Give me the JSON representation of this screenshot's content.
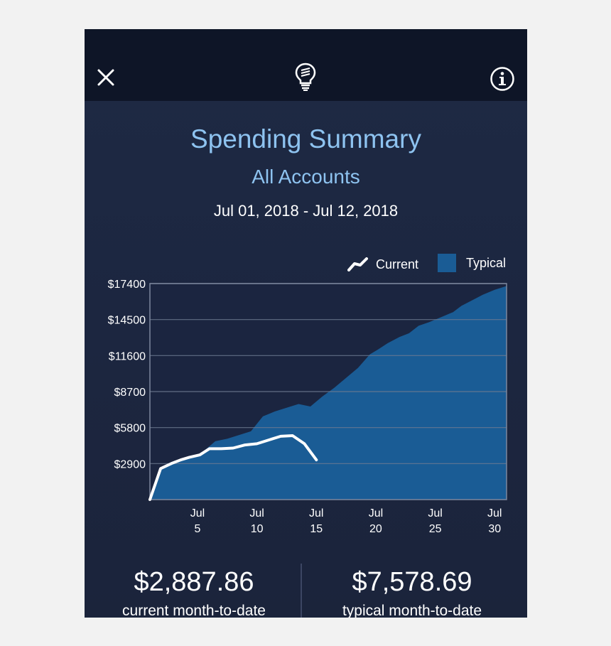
{
  "header": {
    "close_icon": "close-icon",
    "logo_icon": "lightbulb-icon",
    "info_icon": "info-icon"
  },
  "summary": {
    "title": "Spending Summary",
    "subtitle": "All Accounts",
    "date_range": "Jul 01, 2018 - Jul 12, 2018"
  },
  "legend": {
    "current": "Current",
    "typical": "Typical"
  },
  "chart_data": {
    "type": "area",
    "ylim": [
      0,
      17400
    ],
    "y_ticks": [
      {
        "value": 17400,
        "label": "$17400"
      },
      {
        "value": 14500,
        "label": "$14500"
      },
      {
        "value": 11600,
        "label": "$11600"
      },
      {
        "value": 8700,
        "label": "$8700"
      },
      {
        "value": 5800,
        "label": "$5800"
      },
      {
        "value": 2900,
        "label": "$2900"
      }
    ],
    "xlim": [
      1,
      31
    ],
    "x_ticks": [
      {
        "value": 5,
        "line1": "Jul",
        "line2": "5"
      },
      {
        "value": 10,
        "line1": "Jul",
        "line2": "10"
      },
      {
        "value": 15,
        "line1": "Jul",
        "line2": "15"
      },
      {
        "value": 20,
        "line1": "Jul",
        "line2": "20"
      },
      {
        "value": 25,
        "line1": "Jul",
        "line2": "25"
      },
      {
        "value": 30,
        "line1": "Jul",
        "line2": "30"
      }
    ],
    "series": [
      {
        "name": "Typical",
        "color": "#1a5c95",
        "points": [
          [
            1,
            0
          ],
          [
            1.8,
            2500
          ],
          [
            2.6,
            2850
          ],
          [
            3.5,
            3100
          ],
          [
            4.5,
            3400
          ],
          [
            5.4,
            3800
          ],
          [
            6.5,
            4700
          ],
          [
            7.5,
            4900
          ],
          [
            8.5,
            5200
          ],
          [
            9.5,
            5500
          ],
          [
            10.5,
            6700
          ],
          [
            11.5,
            7100
          ],
          [
            12.5,
            7400
          ],
          [
            13.5,
            7700
          ],
          [
            14.5,
            7500
          ],
          [
            15.5,
            8300
          ],
          [
            16.5,
            9000
          ],
          [
            17.5,
            9800
          ],
          [
            18.5,
            10600
          ],
          [
            19.5,
            11700
          ],
          [
            20.2,
            12100
          ],
          [
            21,
            12600
          ],
          [
            22,
            13100
          ],
          [
            22.8,
            13400
          ],
          [
            23.6,
            14000
          ],
          [
            24.5,
            14300
          ],
          [
            25.5,
            14700
          ],
          [
            26.5,
            15100
          ],
          [
            27.2,
            15600
          ],
          [
            28.2,
            16100
          ],
          [
            29,
            16500
          ],
          [
            30,
            16900
          ],
          [
            31,
            17200
          ]
        ]
      },
      {
        "name": "Current",
        "color": "#ffffff",
        "points": [
          [
            1,
            0
          ],
          [
            1.9,
            2500
          ],
          [
            2.8,
            2900
          ],
          [
            3.6,
            3200
          ],
          [
            4.3,
            3400
          ],
          [
            5.2,
            3600
          ],
          [
            6,
            4100
          ],
          [
            7,
            4100
          ],
          [
            8,
            4150
          ],
          [
            9,
            4400
          ],
          [
            10,
            4500
          ],
          [
            11,
            4800
          ],
          [
            12,
            5100
          ],
          [
            13,
            5150
          ],
          [
            14,
            4500
          ],
          [
            15,
            3200
          ]
        ]
      }
    ]
  },
  "stats": {
    "current_value": "$2,887.86",
    "current_label": "current month-to-date",
    "typical_value": "$7,578.69",
    "typical_label": "typical month-to-date"
  }
}
